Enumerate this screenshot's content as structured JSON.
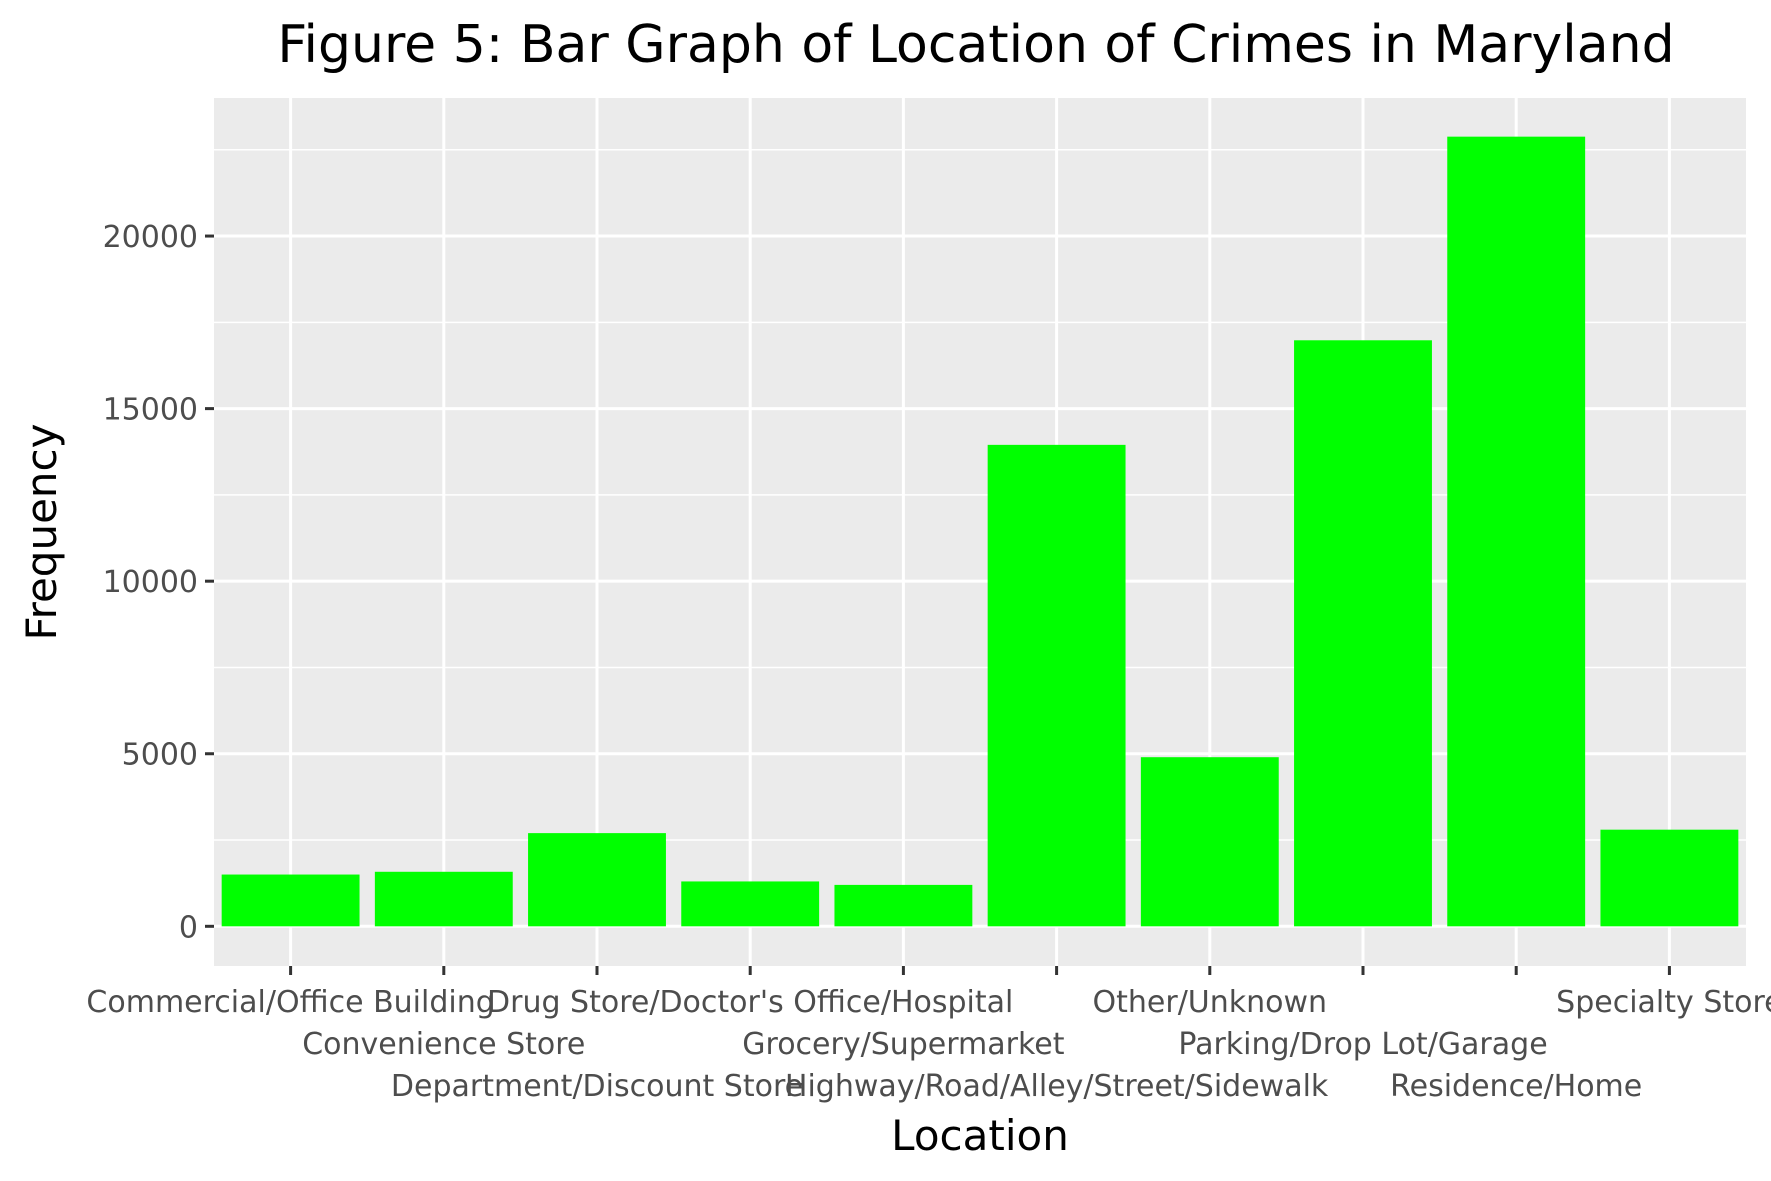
{
  "chart_data": {
    "type": "bar",
    "title": "Figure 5: Bar Graph of Location of Crimes in Maryland",
    "xlabel": "Location",
    "ylabel": "Frequency",
    "categories": [
      "Commercial/Office Building",
      "Convenience Store",
      "Department/Discount Store",
      "Drug Store/Doctor's Office/Hospital",
      "Grocery/Supermarket",
      "Highway/Road/Alley/Street/Sidewalk",
      "Other/Unknown",
      "Parking/Drop Lot/Garage",
      "Residence/Home",
      "Specialty Store"
    ],
    "values": [
      1500,
      1580,
      2700,
      1300,
      1200,
      13950,
      4900,
      16980,
      22880,
      2800
    ],
    "ylim": [
      -1150,
      24000
    ],
    "yticks": [
      0,
      5000,
      10000,
      15000,
      20000
    ],
    "ytick_labels": [
      "0",
      "5000",
      "10000",
      "15000",
      "20000"
    ],
    "grid": true,
    "legend": "none",
    "colors": {
      "bar": "#00ff00",
      "panel": "#ebebeb",
      "grid": "#ffffff",
      "tick_text": "#4d4d4d",
      "tick_mark": "#333333"
    }
  }
}
